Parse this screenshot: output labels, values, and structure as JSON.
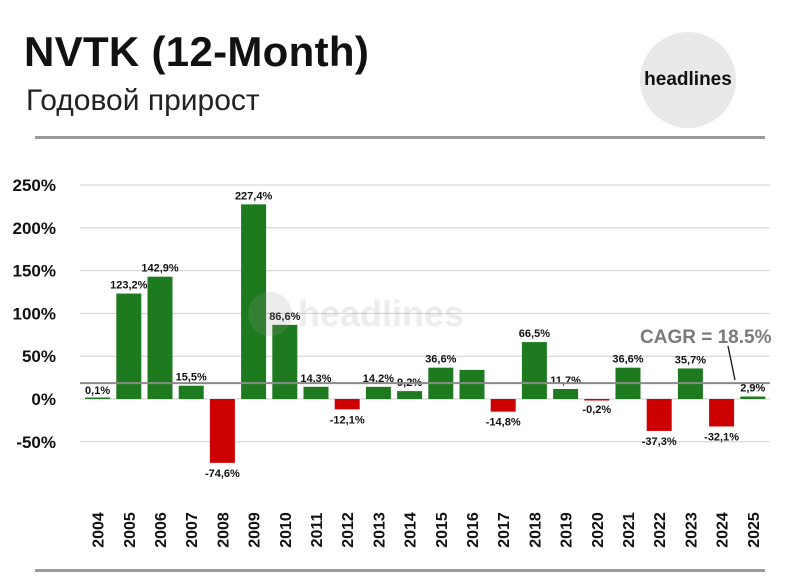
{
  "header": {
    "title": "NVTK (12-Month)",
    "subtitle": "Годовой прирост",
    "logo_text": "headlines"
  },
  "watermark_text": "headlines",
  "colors": {
    "positive": "#1e7a1e",
    "negative": "#cc0000",
    "grid": "#cfcfcf",
    "cagr_line": "#8a8a8a",
    "cagr_text": "#7a7a7a"
  },
  "chart_data": {
    "type": "bar",
    "categories": [
      "2004",
      "2005",
      "2006",
      "2007",
      "2008",
      "2009",
      "2010",
      "2011",
      "2012",
      "2013",
      "2014",
      "2015",
      "2016",
      "2017",
      "2018",
      "2019",
      "2020",
      "2021",
      "2022",
      "2023",
      "2024",
      "2025"
    ],
    "values": [
      0.1,
      123.2,
      142.9,
      15.5,
      -74.6,
      227.4,
      86.6,
      14.3,
      -12.1,
      14.2,
      9.2,
      36.6,
      34,
      -14.8,
      66.5,
      11.7,
      -0.2,
      36.6,
      -37.3,
      35.7,
      -32.1,
      2.9
    ],
    "data_labels": [
      "0,1%",
      "123,2%",
      "142,9%",
      "15,5%",
      "-74,6%",
      "227,4%",
      "86,6%",
      "14,3%",
      "-12,1%",
      "14,2%",
      "9,2%",
      "36,6%",
      "",
      "-14,8%",
      "66,5%",
      "11,7%",
      "-0,2%",
      "36,6%",
      "-37,3%",
      "35,7%",
      "-32,1%",
      "2,9%"
    ],
    "yticks": [
      250,
      200,
      150,
      100,
      50,
      0,
      -50
    ],
    "ytick_labels": [
      "250%",
      "200%",
      "150%",
      "100%",
      "50%",
      "0%",
      "-50%"
    ],
    "ylim": [
      -75,
      250
    ],
    "grid": true,
    "cagr": {
      "value": 18.5,
      "label": "CAGR = 18.5%"
    }
  }
}
